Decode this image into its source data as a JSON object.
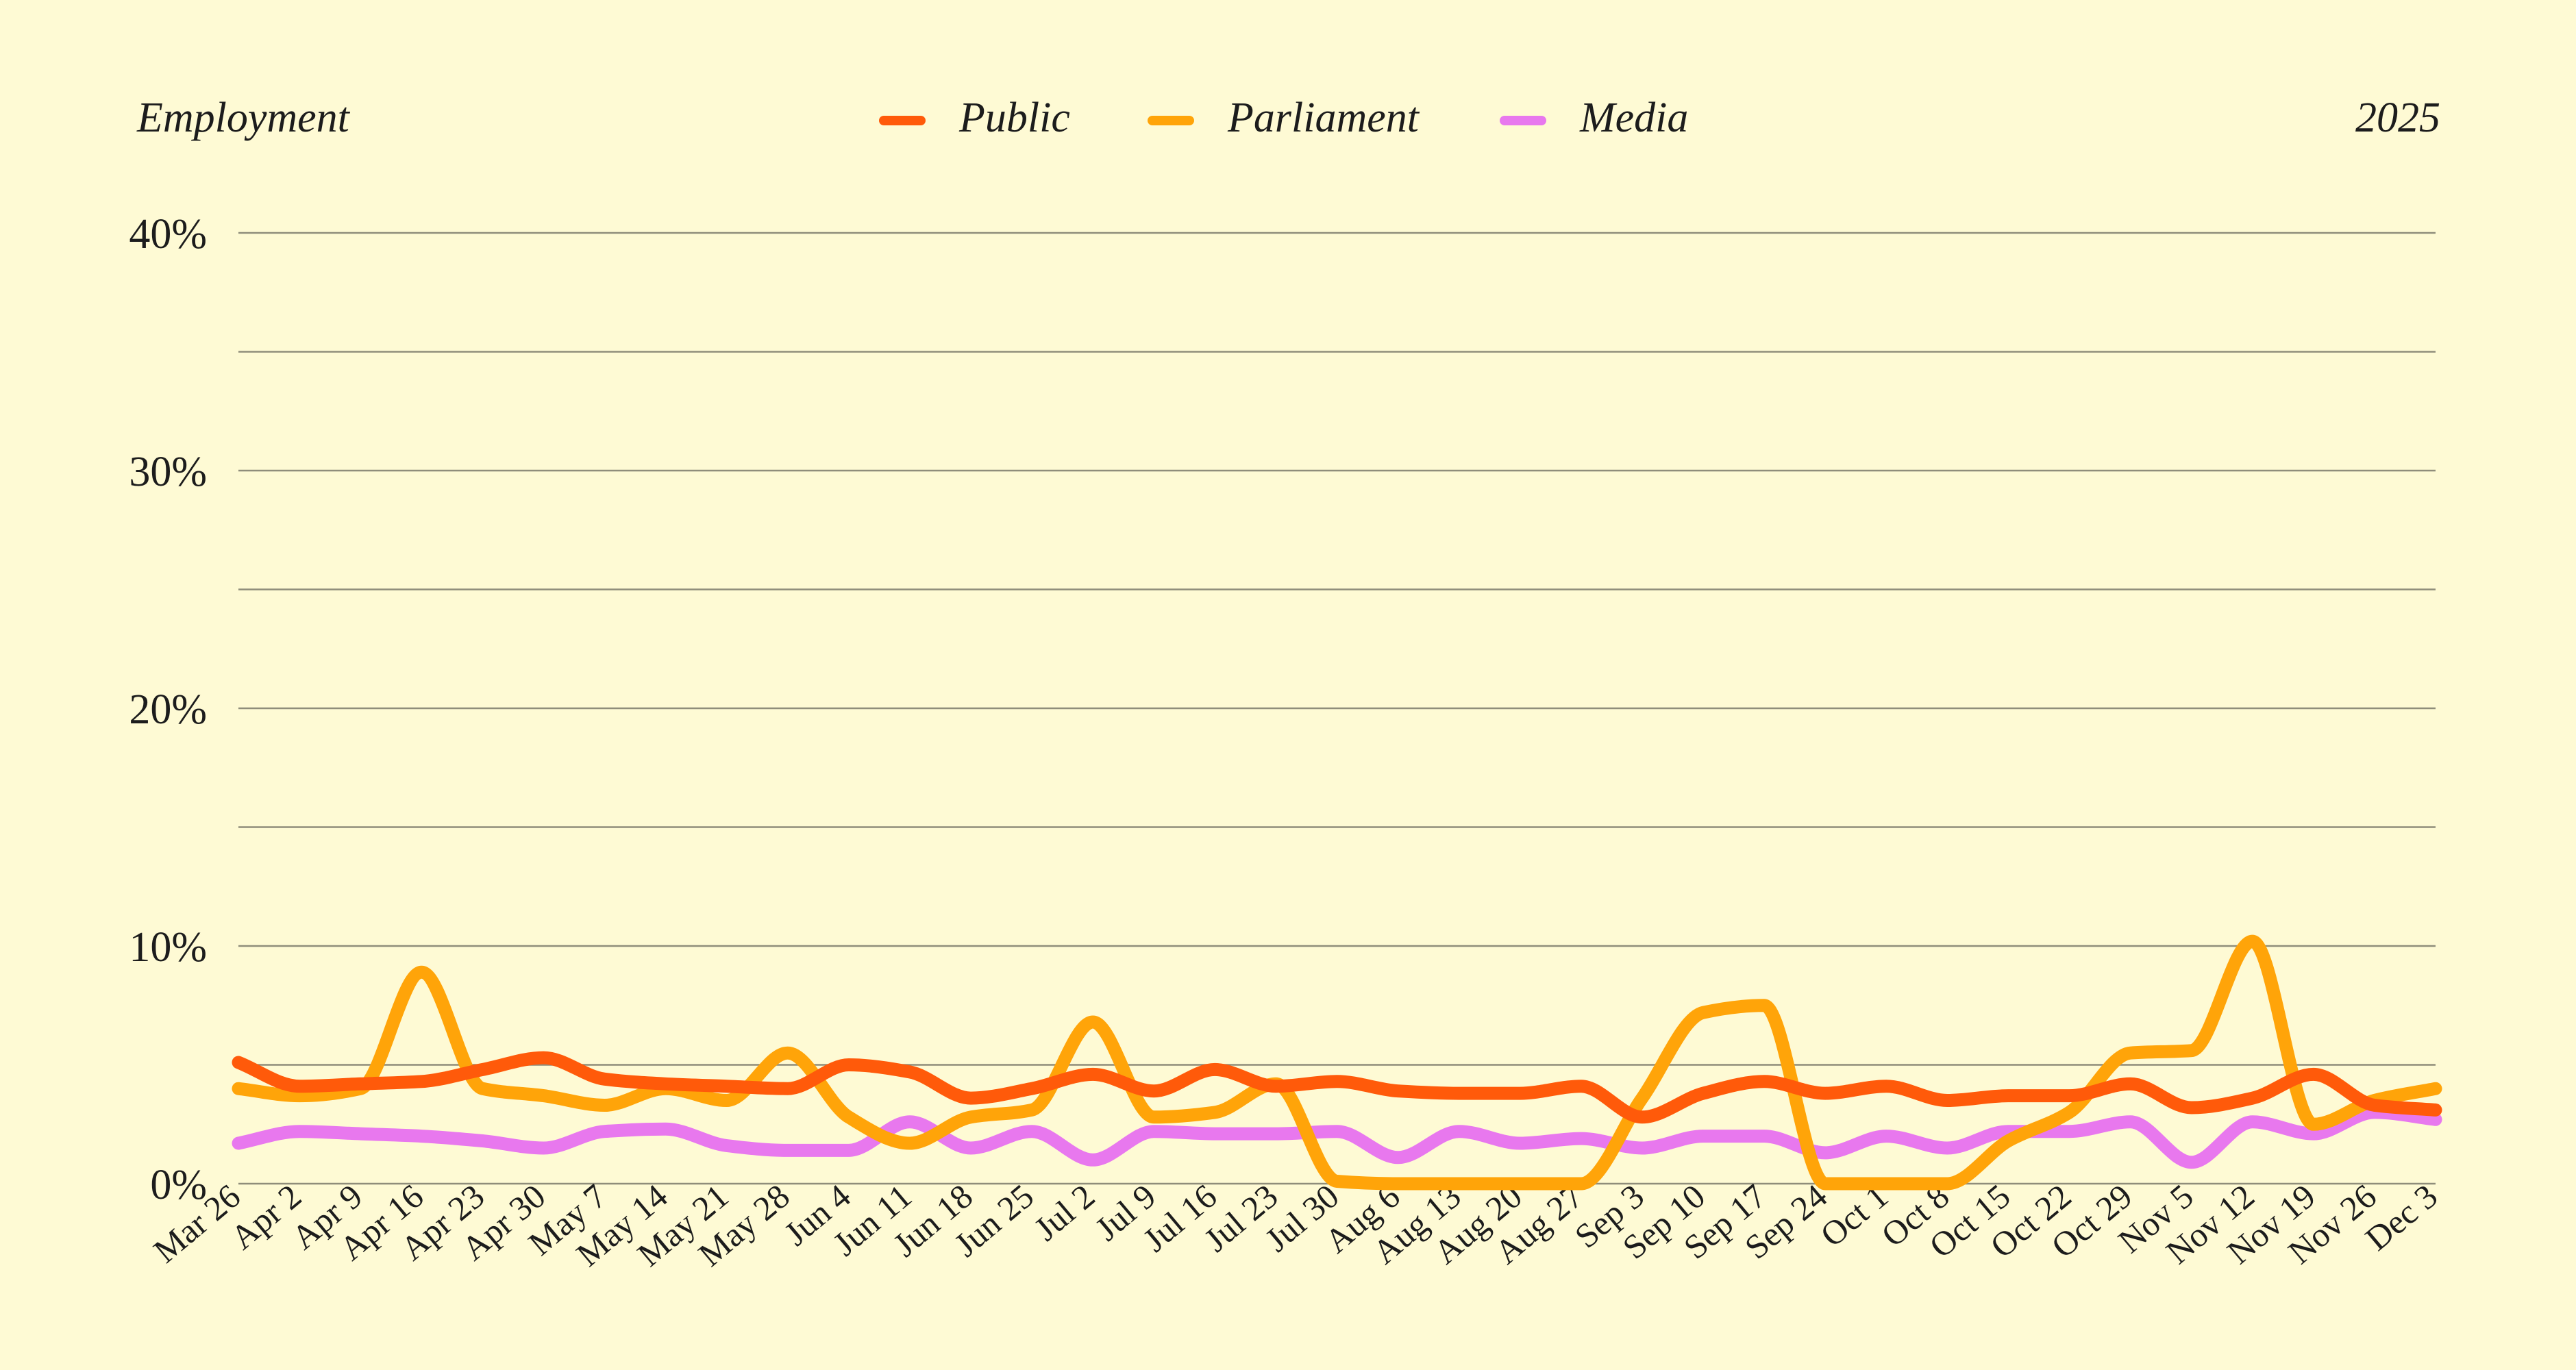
{
  "header": {
    "left_title": "Employment",
    "right_label": "2025"
  },
  "chart_data": {
    "type": "line",
    "ylim": [
      0,
      40
    ],
    "yticks": [
      0,
      10,
      20,
      30,
      40
    ],
    "ytick_labels": [
      "0%",
      "10%",
      "20%",
      "30%",
      "40%"
    ],
    "grid": true,
    "legend_position": "top-center",
    "x": [
      "Mar 26",
      "Apr 2",
      "Apr 9",
      "Apr 16",
      "Apr 23",
      "Apr 30",
      "May 7",
      "May 14",
      "May 21",
      "May 28",
      "Jun 4",
      "Jun 11",
      "Jun 18",
      "Jun 25",
      "Jul 2",
      "Jul 9",
      "Jul 16",
      "Jul 23",
      "Jul 30",
      "Aug 6",
      "Aug 13",
      "Aug 20",
      "Aug 27",
      "Sep 3",
      "Sep 10",
      "Sep 17",
      "Sep 24",
      "Oct 1",
      "Oct 8",
      "Oct 15",
      "Oct 22",
      "Oct 29",
      "Nov 5",
      "Nov 12",
      "Nov 19",
      "Nov 26",
      "Dec 3"
    ],
    "series": [
      {
        "name": "Public",
        "color": "#FF5A0A",
        "values": [
          5.1,
          4.1,
          4.2,
          4.3,
          4.8,
          5.3,
          4.4,
          4.2,
          4.1,
          4.0,
          5.0,
          4.7,
          3.6,
          4.0,
          4.6,
          3.9,
          4.8,
          4.1,
          4.3,
          3.9,
          3.8,
          3.8,
          4.1,
          2.8,
          3.8,
          4.3,
          3.8,
          4.1,
          3.5,
          3.7,
          3.7,
          4.2,
          3.2,
          3.6,
          4.6,
          3.3,
          3.1
        ]
      },
      {
        "name": "Parliament",
        "color": "#FFA409",
        "values": [
          4.0,
          3.7,
          4.0,
          8.9,
          4.0,
          3.7,
          3.3,
          4.0,
          3.5,
          5.5,
          2.8,
          1.7,
          2.8,
          3.1,
          6.8,
          2.8,
          3.0,
          4.2,
          0.1,
          0.0,
          0.0,
          0.0,
          0.0,
          3.6,
          7.2,
          7.5,
          0.0,
          0.0,
          0.0,
          1.8,
          3.0,
          5.5,
          5.6,
          10.2,
          2.5,
          3.5,
          4.0
        ]
      },
      {
        "name": "Media",
        "color": "#E878EE",
        "values": [
          1.7,
          2.2,
          2.1,
          2.0,
          1.8,
          1.5,
          2.2,
          2.3,
          1.6,
          1.4,
          1.4,
          2.6,
          1.5,
          2.2,
          1.0,
          2.2,
          2.1,
          2.1,
          2.2,
          1.1,
          2.2,
          1.7,
          1.9,
          1.5,
          2.0,
          2.0,
          1.3,
          2.0,
          1.5,
          2.2,
          2.2,
          2.6,
          0.9,
          2.6,
          2.1,
          3.0,
          2.7
        ]
      }
    ]
  }
}
